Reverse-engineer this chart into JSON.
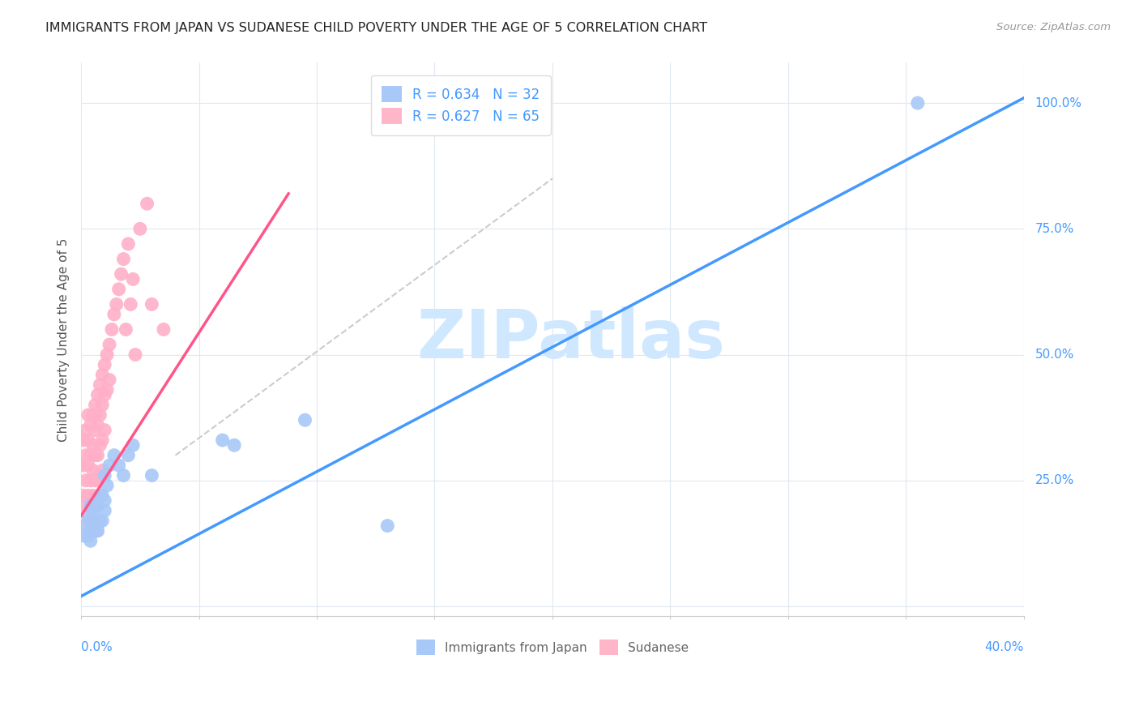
{
  "title": "IMMIGRANTS FROM JAPAN VS SUDANESE CHILD POVERTY UNDER THE AGE OF 5 CORRELATION CHART",
  "source": "Source: ZipAtlas.com",
  "ylabel": "Child Poverty Under the Age of 5",
  "yticks": [
    0.0,
    0.25,
    0.5,
    0.75,
    1.0
  ],
  "ytick_labels": [
    "",
    "25.0%",
    "50.0%",
    "75.0%",
    "100.0%"
  ],
  "xticks": [
    0.0,
    0.05,
    0.1,
    0.15,
    0.2,
    0.25,
    0.3,
    0.35,
    0.4
  ],
  "xlim": [
    0.0,
    0.4
  ],
  "ylim": [
    -0.02,
    1.08
  ],
  "legend_blue_label": "R = 0.634   N = 32",
  "legend_pink_label": "R = 0.627   N = 65",
  "legend_blue_color": "#a8c8f8",
  "legend_pink_color": "#ffb6c8",
  "line_blue_color": "#4499ff",
  "line_pink_color": "#ff5588",
  "dot_blue_color": "#a8c8f8",
  "dot_pink_color": "#ffb0c8",
  "background_color": "#ffffff",
  "grid_color": "#e0e8f0",
  "title_color": "#222222",
  "source_color": "#999999",
  "axis_label_color": "#4499ff",
  "blue_line_x0": 0.0,
  "blue_line_y0": 0.02,
  "blue_line_x1": 0.4,
  "blue_line_y1": 1.01,
  "pink_line_x0": 0.0,
  "pink_line_y0": 0.18,
  "pink_line_x1": 0.088,
  "pink_line_y1": 0.82,
  "dash_line_x0": 0.04,
  "dash_line_y0": 0.3,
  "dash_line_x1": 0.2,
  "dash_line_y1": 0.85,
  "blue_points_x": [
    0.001,
    0.002,
    0.003,
    0.003,
    0.004,
    0.004,
    0.005,
    0.005,
    0.006,
    0.006,
    0.007,
    0.007,
    0.008,
    0.008,
    0.009,
    0.009,
    0.01,
    0.01,
    0.01,
    0.011,
    0.012,
    0.014,
    0.016,
    0.018,
    0.02,
    0.022,
    0.03,
    0.06,
    0.065,
    0.095,
    0.13,
    0.355
  ],
  "blue_points_y": [
    0.14,
    0.16,
    0.14,
    0.18,
    0.13,
    0.2,
    0.16,
    0.19,
    0.15,
    0.17,
    0.15,
    0.2,
    0.17,
    0.22,
    0.17,
    0.22,
    0.19,
    0.21,
    0.26,
    0.24,
    0.28,
    0.3,
    0.28,
    0.26,
    0.3,
    0.32,
    0.26,
    0.33,
    0.32,
    0.37,
    0.16,
    1.0
  ],
  "pink_points_x": [
    0.001,
    0.001,
    0.001,
    0.002,
    0.002,
    0.002,
    0.002,
    0.003,
    0.003,
    0.003,
    0.003,
    0.003,
    0.004,
    0.004,
    0.004,
    0.004,
    0.004,
    0.005,
    0.005,
    0.005,
    0.005,
    0.005,
    0.006,
    0.006,
    0.006,
    0.006,
    0.006,
    0.006,
    0.006,
    0.007,
    0.007,
    0.007,
    0.007,
    0.007,
    0.007,
    0.008,
    0.008,
    0.008,
    0.008,
    0.009,
    0.009,
    0.009,
    0.009,
    0.01,
    0.01,
    0.01,
    0.011,
    0.011,
    0.012,
    0.012,
    0.013,
    0.014,
    0.015,
    0.016,
    0.017,
    0.018,
    0.019,
    0.02,
    0.021,
    0.022,
    0.023,
    0.025,
    0.028,
    0.03,
    0.035
  ],
  "pink_points_y": [
    0.33,
    0.28,
    0.22,
    0.35,
    0.3,
    0.25,
    0.2,
    0.38,
    0.33,
    0.28,
    0.22,
    0.17,
    0.36,
    0.3,
    0.25,
    0.2,
    0.15,
    0.38,
    0.32,
    0.27,
    0.22,
    0.17,
    0.4,
    0.35,
    0.3,
    0.25,
    0.2,
    0.15,
    0.38,
    0.42,
    0.36,
    0.3,
    0.25,
    0.2,
    0.15,
    0.44,
    0.38,
    0.32,
    0.26,
    0.46,
    0.4,
    0.33,
    0.27,
    0.48,
    0.42,
    0.35,
    0.5,
    0.43,
    0.52,
    0.45,
    0.55,
    0.58,
    0.6,
    0.63,
    0.66,
    0.69,
    0.55,
    0.72,
    0.6,
    0.65,
    0.5,
    0.75,
    0.8,
    0.6,
    0.55
  ],
  "watermark_text": "ZIPatlas",
  "watermark_color": "#d0e8ff",
  "watermark_fontsize": 60
}
